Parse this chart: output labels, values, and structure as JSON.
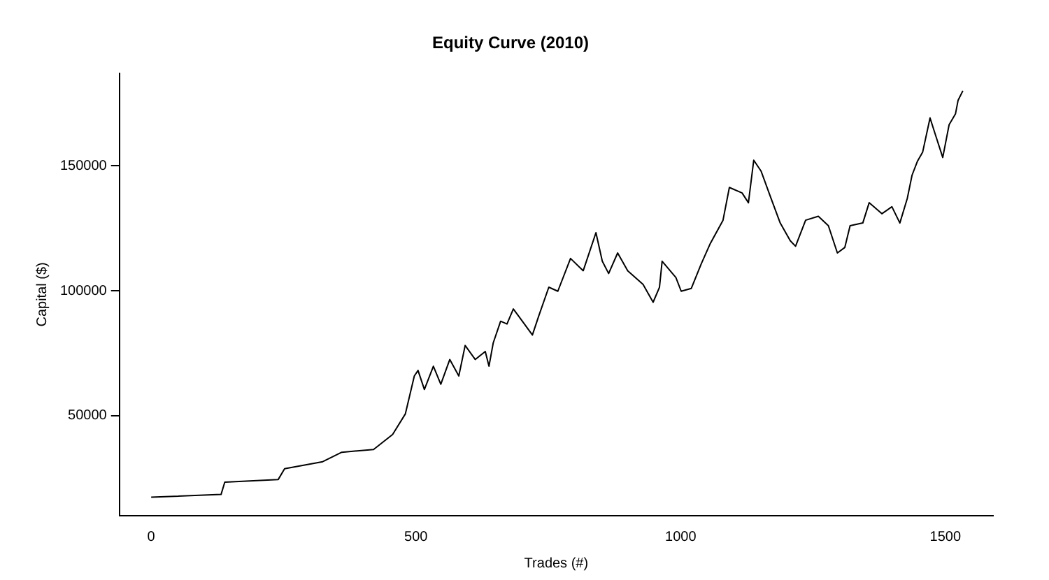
{
  "chart_data": {
    "type": "line",
    "title": "Equity Curve (2010)",
    "xlabel": "Trades (#)",
    "ylabel": "Capital ($)",
    "xlim": [
      -60,
      1590
    ],
    "ylim": [
      10000,
      187000
    ],
    "xticks": [
      0,
      500,
      1000,
      1500
    ],
    "yticks": [
      50000,
      100000,
      150000
    ],
    "grid": false,
    "legend": false,
    "marker": "none",
    "line_style": "solid",
    "series": [
      {
        "color": "#000000",
        "x": [
          0,
          132,
          139,
          240,
          252,
          324,
          360,
          420,
          456,
          480,
          497,
          504,
          516,
          533,
          547,
          564,
          581,
          593,
          612,
          631,
          638,
          646,
          660,
          672,
          684,
          701,
          720,
          732,
          751,
          768,
          792,
          816,
          840,
          852,
          864,
          881,
          900,
          929,
          948,
          960,
          965,
          991,
          1001,
          1020,
          1039,
          1056,
          1080,
          1092,
          1116,
          1128,
          1138,
          1152,
          1169,
          1188,
          1207,
          1217,
          1236,
          1260,
          1279,
          1296,
          1310,
          1320,
          1344,
          1356,
          1380,
          1399,
          1414,
          1428,
          1437,
          1447,
          1457,
          1471,
          1481,
          1495,
          1507,
          1519,
          1524,
          1533
        ],
        "values": [
          17400,
          18500,
          23400,
          24500,
          28800,
          31600,
          35400,
          36500,
          42500,
          50700,
          65900,
          68100,
          60500,
          69800,
          62600,
          72500,
          65900,
          78100,
          72500,
          75700,
          69800,
          79100,
          87800,
          86700,
          92700,
          87800,
          82300,
          89900,
          101400,
          99800,
          112900,
          108000,
          123200,
          111800,
          106900,
          115100,
          108000,
          102500,
          95400,
          101400,
          111800,
          105300,
          99800,
          100900,
          110800,
          118900,
          128200,
          141300,
          139100,
          135200,
          152200,
          147800,
          137900,
          127100,
          120000,
          117800,
          128200,
          129800,
          126000,
          115100,
          117300,
          126000,
          127100,
          135200,
          130800,
          133600,
          127100,
          136900,
          146200,
          151700,
          155400,
          169100,
          162500,
          153300,
          166400,
          170700,
          176200,
          180000
        ]
      }
    ]
  }
}
